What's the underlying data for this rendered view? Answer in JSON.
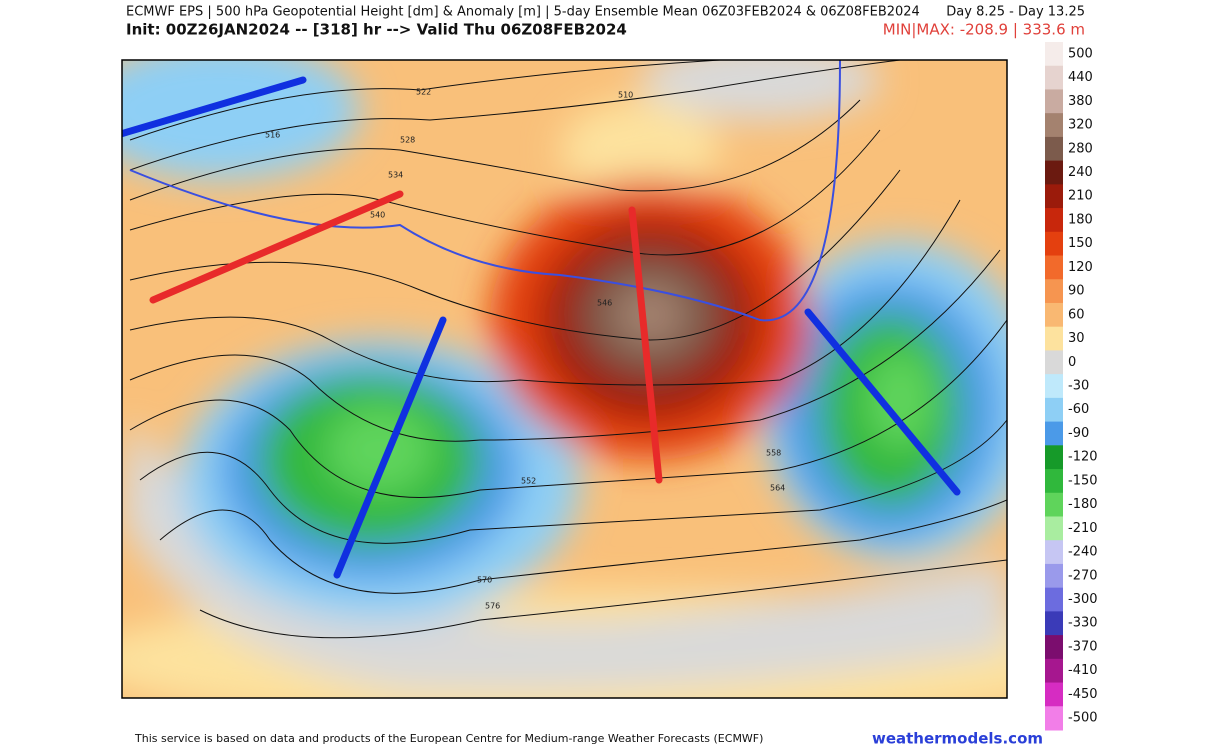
{
  "header": {
    "title": "ECMWF EPS | 500 hPa Geopotential Height [dm] & Anomaly [m] | 5-day Ensemble Mean 06Z03FEB2024 & 06Z08FEB2024",
    "days": "Day 8.25 - Day 13.25",
    "init": "Init: 00Z26JAN2024 -- [318] hr --> Valid Thu 06Z08FEB2024",
    "minmax": "MIN|MAX: -208.9 | 333.6 m"
  },
  "colorbar": {
    "labels": [
      "500",
      "440",
      "380",
      "320",
      "280",
      "240",
      "210",
      "180",
      "150",
      "120",
      "90",
      "60",
      "30",
      "0",
      "-30",
      "-60",
      "-90",
      "-120",
      "-150",
      "-180",
      "-210",
      "-240",
      "-270",
      "-300",
      "-330",
      "-370",
      "-410",
      "-450",
      "-500"
    ],
    "colors": [
      "#f5ecea",
      "#e6d3cf",
      "#c9aba1",
      "#a4826f",
      "#7c5b4c",
      "#6b1a10",
      "#9b1b0b",
      "#c8270c",
      "#e4400f",
      "#f26a2b",
      "#f69550",
      "#f9b872",
      "#fde29e",
      "#d9d9d9",
      "#bfe9fb",
      "#8ecff5",
      "#4b9ae8",
      "#169a29",
      "#30b83c",
      "#5fd45b",
      "#a9eda0",
      "#c6c6f3",
      "#9a9aeb",
      "#6c6cdf",
      "#3b3bb8",
      "#7b0d6e",
      "#a6178f",
      "#d62cc2",
      "#f27ee8"
    ]
  },
  "contours": [
    "510",
    "516",
    "522",
    "528",
    "534",
    "540",
    "546",
    "552",
    "558",
    "564",
    "570",
    "576"
  ],
  "footer": {
    "credit": "This service is based on data and products of the European Centre for Medium-range Weather Forecasts (ECMWF)",
    "site": "weathermodels.com"
  }
}
